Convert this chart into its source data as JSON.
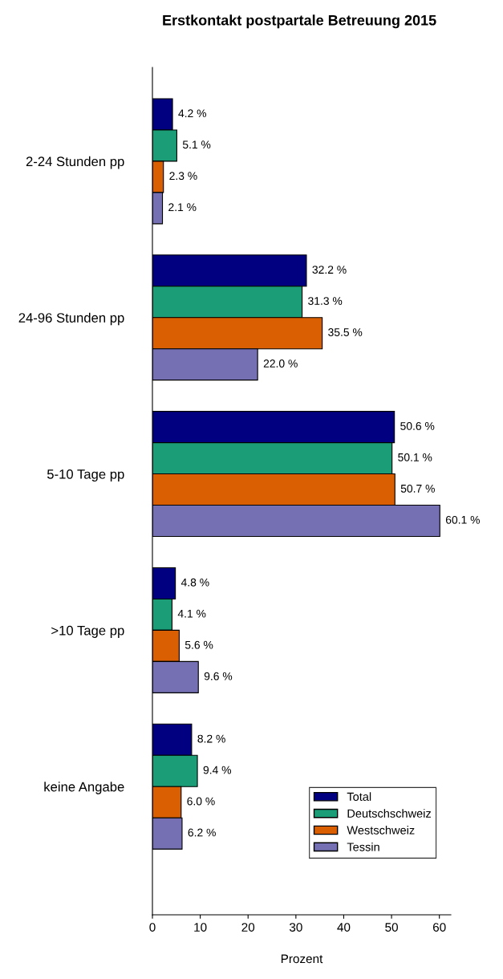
{
  "chart_data": {
    "type": "bar",
    "orientation": "horizontal",
    "title": "Erstkontakt postpartale Betreuung 2015",
    "xlabel": "Prozent",
    "categories": [
      "2-24 Stunden pp",
      "24-96 Stunden pp",
      "5-10 Tage pp",
      ">10 Tage pp",
      "keine Angabe"
    ],
    "series": [
      {
        "name": "Total",
        "color": "#000080",
        "values": [
          4.2,
          32.2,
          50.6,
          4.8,
          8.2
        ],
        "value_labels": [
          "4.2 %",
          "32.2 %",
          "50.6 %",
          "4.8 %",
          "8.2 %"
        ]
      },
      {
        "name": "Deutschschweiz",
        "color": "#1b9e77",
        "values": [
          5.1,
          31.3,
          50.1,
          4.1,
          9.4
        ],
        "value_labels": [
          "5.1 %",
          "31.3 %",
          "50.1 %",
          "4.1 %",
          "9.4 %"
        ]
      },
      {
        "name": "Westschweiz",
        "color": "#d95f02",
        "values": [
          2.3,
          35.5,
          50.7,
          5.6,
          6.0
        ],
        "value_labels": [
          "2.3 %",
          "35.5 %",
          "50.7 %",
          "5.6 %",
          "6.0 %"
        ]
      },
      {
        "name": "Tessin",
        "color": "#7570b3",
        "values": [
          2.1,
          22.0,
          60.1,
          9.6,
          6.2
        ],
        "value_labels": [
          "2.1 %",
          "22.0 %",
          "60.1 %",
          "9.6 %",
          "6.2 %"
        ]
      }
    ],
    "xlim": [
      0,
      62.4
    ],
    "xticks": [
      0,
      10,
      20,
      30,
      40,
      50,
      60
    ],
    "grid": false,
    "legend": "bottom right"
  }
}
